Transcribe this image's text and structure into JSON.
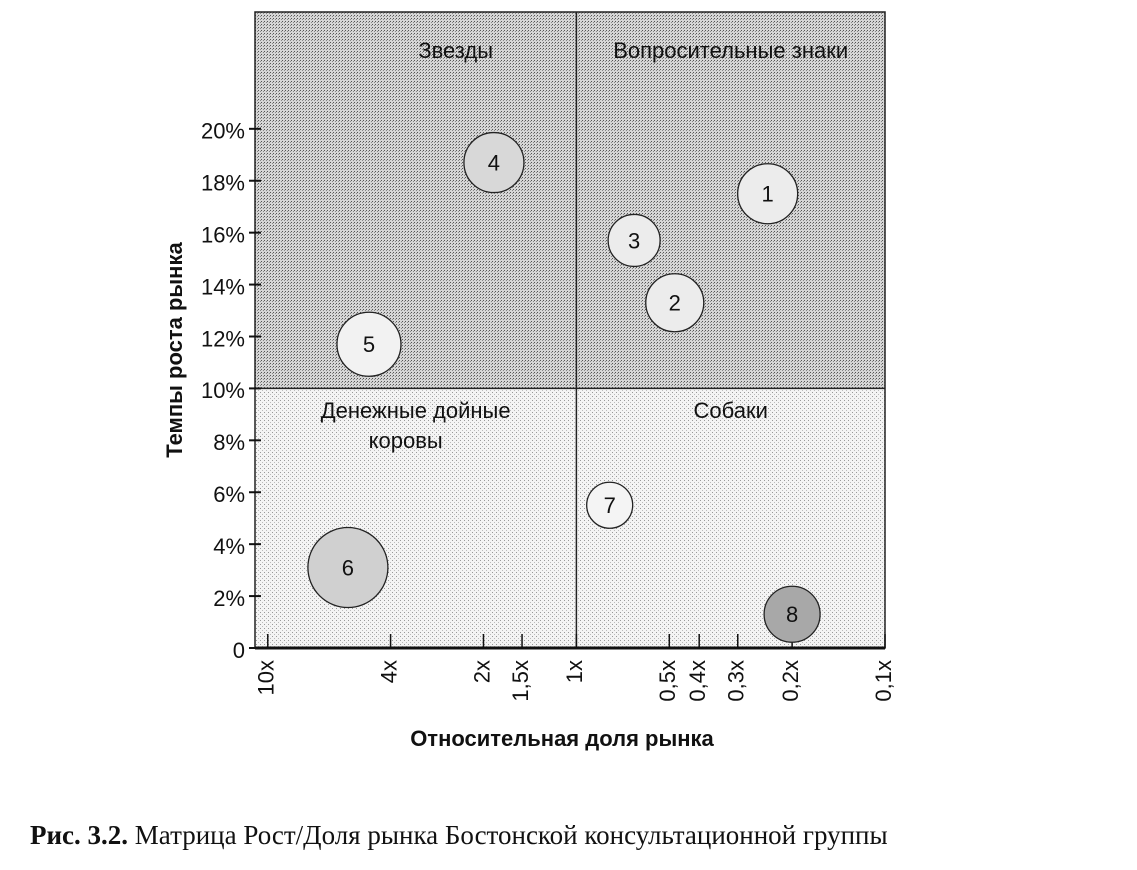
{
  "chart_data": {
    "type": "bubble",
    "x_label": "Относительная доля рынка",
    "y_label": "Темпы роста рынка",
    "caption_prefix": "Рис. 3.2.",
    "caption": "Матрица Рост/Доля рынка Бостонской консультационной группы",
    "quadrants": [
      "Звезды",
      "Вопросительные знаки",
      "Денежные дойные",
      "коровы",
      "Собаки"
    ],
    "divider_x": 1,
    "divider_y": 10,
    "x_log": true,
    "xlim": [
      11,
      0.1
    ],
    "xticks": [
      {
        "value": 10,
        "label": "10x"
      },
      {
        "value": 4,
        "label": "4x"
      },
      {
        "value": 2,
        "label": "2x"
      },
      {
        "value": 1.5,
        "label": "1,5x"
      },
      {
        "value": 1,
        "label": "1x"
      },
      {
        "value": 0.5,
        "label": "0,5x"
      },
      {
        "value": 0.4,
        "label": "0,4x"
      },
      {
        "value": 0.3,
        "label": "0,3x"
      },
      {
        "value": 0.2,
        "label": "0,2x"
      },
      {
        "value": 0.1,
        "label": "0,1x"
      }
    ],
    "ylim": [
      0,
      24.5
    ],
    "yticks": [
      0,
      {
        "value": 2,
        "label": "2%"
      },
      {
        "value": 4,
        "label": "4%"
      },
      {
        "value": 6,
        "label": "6%"
      },
      {
        "value": 8,
        "label": "8%"
      },
      {
        "value": 10,
        "label": "10%"
      },
      {
        "value": 12,
        "label": "12%"
      },
      {
        "value": 14,
        "label": "14%"
      },
      {
        "value": 16,
        "label": "16%"
      },
      {
        "value": 18,
        "label": "18%"
      },
      {
        "value": 20,
        "label": "20%"
      }
    ],
    "labels": [
      "1",
      "2",
      "3",
      "4",
      "5",
      "6",
      "7",
      "8"
    ],
    "x": [
      0.24,
      0.48,
      0.65,
      1.85,
      4.7,
      5.5,
      0.78,
      0.2
    ],
    "values": [
      17.5,
      13.3,
      15.7,
      18.7,
      11.7,
      3.1,
      5.5,
      1.3
    ],
    "sizes": [
      30,
      29,
      26,
      30,
      32,
      40,
      23,
      28
    ],
    "colors": [
      "#ececec",
      "#ececec",
      "#ececec",
      "#d8d8d8",
      "#f2f2f2",
      "#d0d0d0",
      "#f4f4f4",
      "#a8a8a8"
    ]
  }
}
